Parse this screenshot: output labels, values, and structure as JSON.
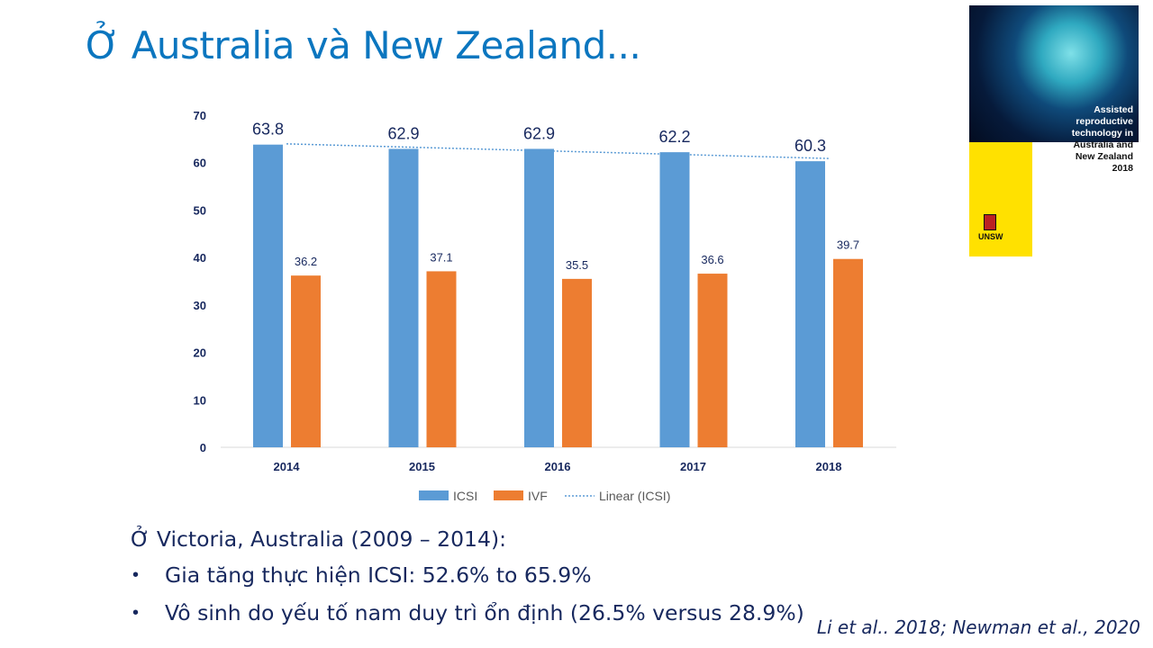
{
  "slide": {
    "title": "Ở Australia và New Zealand...",
    "subheading": "Ở Victoria, Australia (2009 – 2014):",
    "bullets": [
      "Gia tăng thực hiện  ICSI: 52.6% to 65.9%",
      "Vô sinh do yếu tố nam duy trì ổn định (26.5% versus 28.9%)"
    ],
    "bullet_char": "•",
    "citation": "Li et al.. 2018; Newman et al., 2020"
  },
  "cover": {
    "title_white": [
      "Assisted",
      "reproductive",
      "technology in"
    ],
    "title_dark": [
      "Australia and",
      "New Zealand",
      "2018"
    ],
    "logo": "UNSW"
  },
  "chart_data": {
    "type": "bar",
    "categories": [
      "2014",
      "2015",
      "2016",
      "2017",
      "2018"
    ],
    "series": [
      {
        "name": "ICSI",
        "values": [
          63.8,
          62.9,
          62.9,
          62.2,
          60.3
        ],
        "color": "#5b9bd5"
      },
      {
        "name": "IVF",
        "values": [
          36.2,
          37.1,
          35.5,
          36.6,
          39.7
        ],
        "color": "#ed7d31"
      }
    ],
    "trendline": {
      "name": "Linear (ICSI)",
      "series": "ICSI",
      "type": "linear",
      "color": "#5b9bd5"
    },
    "ylim": [
      0,
      70
    ],
    "yticks": [
      0,
      10,
      20,
      30,
      40,
      50,
      60,
      70
    ],
    "grid": false,
    "legend": "bottom",
    "title": "",
    "xlabel": "",
    "ylabel": ""
  }
}
